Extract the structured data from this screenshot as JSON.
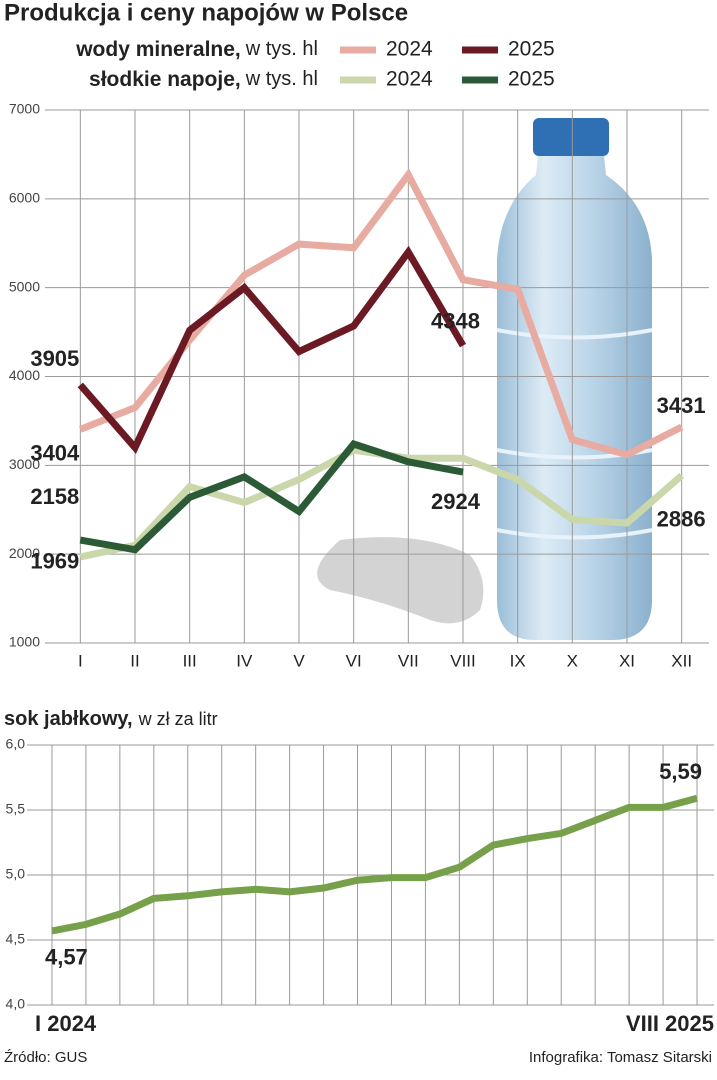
{
  "title": "Produkcja i ceny napojów w Polsce",
  "source": "Źródło: GUS",
  "credit": "Infografika: Tomasz Sitarski",
  "chart_data": [
    {
      "type": "line",
      "series_groups": [
        {
          "label": "wody mineralne,",
          "unit": "w tys. hl"
        },
        {
          "label": "słodkie napoje,",
          "unit": "w tys. hl"
        }
      ],
      "categories": [
        "I",
        "II",
        "III",
        "IV",
        "V",
        "VI",
        "VII",
        "VIII",
        "IX",
        "X",
        "XI",
        "XII"
      ],
      "series": [
        {
          "name": "2024",
          "color": "#e8aba2",
          "values": [
            3404,
            3650,
            4410,
            5140,
            5490,
            5450,
            6270,
            5090,
            4980,
            3290,
            3120,
            3431
          ],
          "value_labels": [
            "3404",
            null,
            null,
            null,
            null,
            null,
            null,
            null,
            null,
            null,
            null,
            "3431"
          ]
        },
        {
          "name": "2025",
          "color": "#6b1a24",
          "values": [
            3905,
            3200,
            4520,
            5000,
            4280,
            4570,
            5400,
            4348,
            null,
            null,
            null,
            null
          ],
          "value_labels": [
            "3905",
            null,
            null,
            null,
            null,
            null,
            null,
            "4348",
            null,
            null,
            null,
            null
          ]
        },
        {
          "name": "2024",
          "color": "#c9d7aa",
          "values": [
            1969,
            2100,
            2760,
            2580,
            2840,
            3170,
            3080,
            3080,
            2840,
            2390,
            2350,
            2886
          ],
          "value_labels": [
            "1969",
            null,
            null,
            null,
            null,
            null,
            null,
            null,
            null,
            null,
            null,
            "2886"
          ]
        },
        {
          "name": "2025",
          "color": "#2c5a36",
          "values": [
            2158,
            2050,
            2640,
            2870,
            2480,
            3240,
            3040,
            2924,
            null,
            null,
            null,
            null
          ],
          "value_labels": [
            "2158",
            null,
            null,
            null,
            null,
            null,
            null,
            "2924",
            null,
            null,
            null,
            null
          ]
        }
      ],
      "ylim": [
        1000,
        7000
      ],
      "yticks": [
        1000,
        2000,
        3000,
        4000,
        5000,
        6000,
        7000
      ],
      "grid": true
    },
    {
      "type": "line",
      "title": "sok jabłkowy,",
      "subtitle": "w zł za litr",
      "categories": [
        "I 2024",
        null,
        null,
        null,
        null,
        null,
        null,
        null,
        null,
        null,
        null,
        null,
        null,
        null,
        null,
        null,
        null,
        null,
        null,
        "VIII 2025"
      ],
      "series": [
        {
          "color": "#76a04a",
          "values": [
            4.57,
            4.62,
            4.7,
            4.82,
            4.84,
            4.87,
            4.89,
            4.87,
            4.9,
            4.96,
            4.98,
            4.98,
            5.06,
            5.23,
            5.28,
            5.32,
            5.42,
            5.52,
            5.52,
            5.59
          ],
          "value_labels": [
            "4,57",
            null,
            null,
            null,
            null,
            null,
            null,
            null,
            null,
            null,
            null,
            null,
            null,
            null,
            null,
            null,
            null,
            null,
            null,
            "5,59"
          ]
        }
      ],
      "ylim": [
        4.0,
        6.0
      ],
      "yticks": [
        {
          "value": 4.0,
          "label": "4,0"
        },
        {
          "value": 4.5,
          "label": "4,5"
        },
        {
          "value": 5.0,
          "label": "5,0"
        },
        {
          "value": 5.5,
          "label": "5,5"
        },
        {
          "value": 6.0,
          "label": "6,0"
        }
      ],
      "grid": true
    }
  ]
}
